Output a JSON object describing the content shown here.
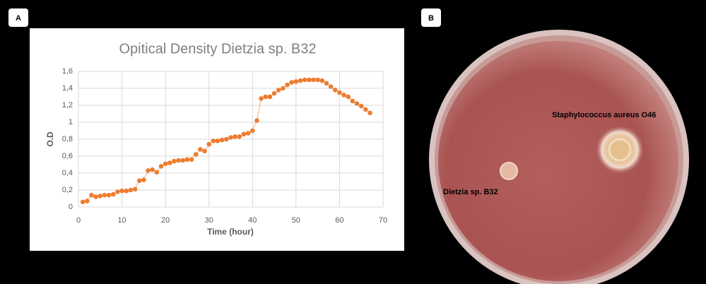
{
  "panel_labels": [
    "A",
    "B"
  ],
  "chart_data": {
    "type": "line",
    "title": "Opitical Density Dietzia sp. B32",
    "x_label": "Time (hour)",
    "y_label": "O.D",
    "x": [
      1,
      2,
      3,
      4,
      5,
      6,
      7,
      8,
      9,
      10,
      11,
      12,
      13,
      14,
      15,
      16,
      17,
      18,
      19,
      20,
      21,
      22,
      23,
      24,
      25,
      26,
      27,
      28,
      29,
      30,
      31,
      32,
      33,
      34,
      35,
      36,
      37,
      38,
      39,
      40,
      41,
      42,
      43,
      44,
      45,
      46,
      47,
      48,
      49,
      50,
      51,
      52,
      53,
      54,
      55,
      56,
      57,
      58,
      59,
      60,
      61,
      62,
      63,
      64,
      65,
      66,
      67
    ],
    "series": [
      {
        "name": "O.D",
        "color": "#ed7d31",
        "values": [
          0.06,
          0.07,
          0.14,
          0.12,
          0.13,
          0.14,
          0.14,
          0.15,
          0.18,
          0.19,
          0.19,
          0.2,
          0.21,
          0.31,
          0.32,
          0.43,
          0.44,
          0.41,
          0.48,
          0.51,
          0.52,
          0.54,
          0.55,
          0.55,
          0.56,
          0.56,
          0.62,
          0.68,
          0.66,
          0.74,
          0.78,
          0.78,
          0.79,
          0.8,
          0.82,
          0.83,
          0.83,
          0.86,
          0.87,
          0.9,
          1.02,
          1.28,
          1.3,
          1.3,
          1.34,
          1.38,
          1.4,
          1.44,
          1.47,
          1.48,
          1.49,
          1.5,
          1.5,
          1.5,
          1.5,
          1.49,
          1.46,
          1.42,
          1.38,
          1.35,
          1.32,
          1.3,
          1.25,
          1.22,
          1.19,
          1.15,
          1.11
        ]
      }
    ],
    "xlim": [
      0,
      70
    ],
    "xticks": [
      0,
      10,
      20,
      30,
      40,
      50,
      60,
      70
    ],
    "ylim": [
      0,
      1.6
    ],
    "yticks": [
      0,
      {
        "value": 0.2,
        "label": "0,2"
      },
      {
        "value": 0.4,
        "label": "0,4"
      },
      {
        "value": 0.6,
        "label": "0,6"
      },
      {
        "value": 0.8,
        "label": "0,8"
      },
      1,
      {
        "value": 1.2,
        "label": "1,2"
      },
      {
        "value": 1.4,
        "label": "1,4"
      },
      {
        "value": 1.6,
        "label": "1,6"
      }
    ],
    "grid": true
  },
  "photo": {
    "labels": [
      "Staphylococcus aureus O46",
      "Dietzia sp. B32"
    ]
  }
}
